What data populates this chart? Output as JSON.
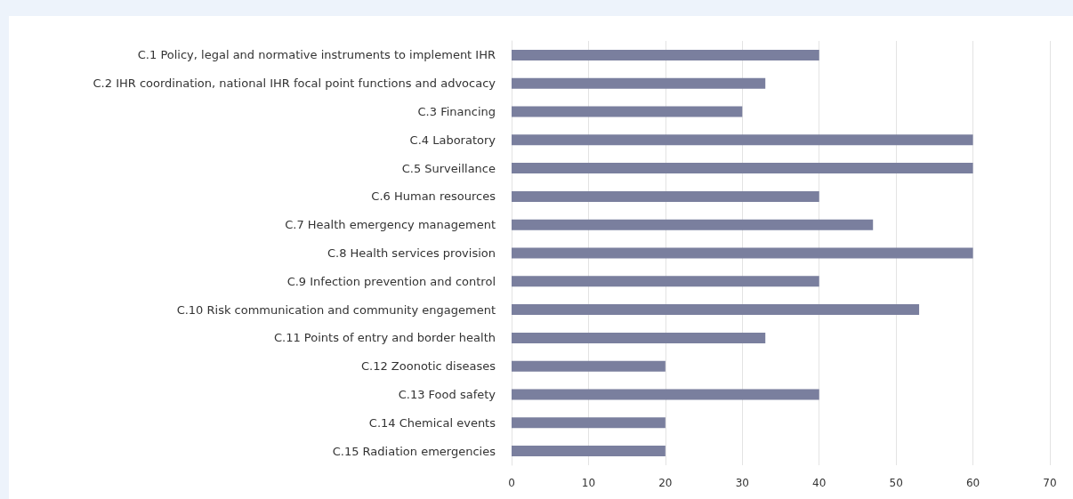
{
  "chart_data": {
    "type": "bar",
    "orientation": "horizontal",
    "categories": [
      "C.1 Policy, legal and normative instruments to implement IHR",
      "C.2 IHR coordination, national IHR focal point functions and advocacy",
      "C.3 Financing",
      "C.4 Laboratory",
      "C.5 Surveillance",
      "C.6 Human resources",
      "C.7 Health emergency management",
      "C.8 Health services provision",
      "C.9 Infection prevention and control",
      "C.10 Risk communication and community engagement",
      "C.11 Points of entry and border health",
      "C.12 Zoonotic diseases",
      "C.13 Food safety",
      "C.14 Chemical events",
      "C.15 Radiation emergencies"
    ],
    "values": [
      40,
      33,
      30,
      60,
      60,
      40,
      47,
      60,
      40,
      53,
      33,
      20,
      40,
      20,
      20
    ],
    "color": "#7a7f9e",
    "xlim": [
      0,
      70
    ],
    "xticks": [
      0,
      10,
      20,
      30,
      40,
      50,
      60,
      70
    ],
    "grid": "x"
  }
}
